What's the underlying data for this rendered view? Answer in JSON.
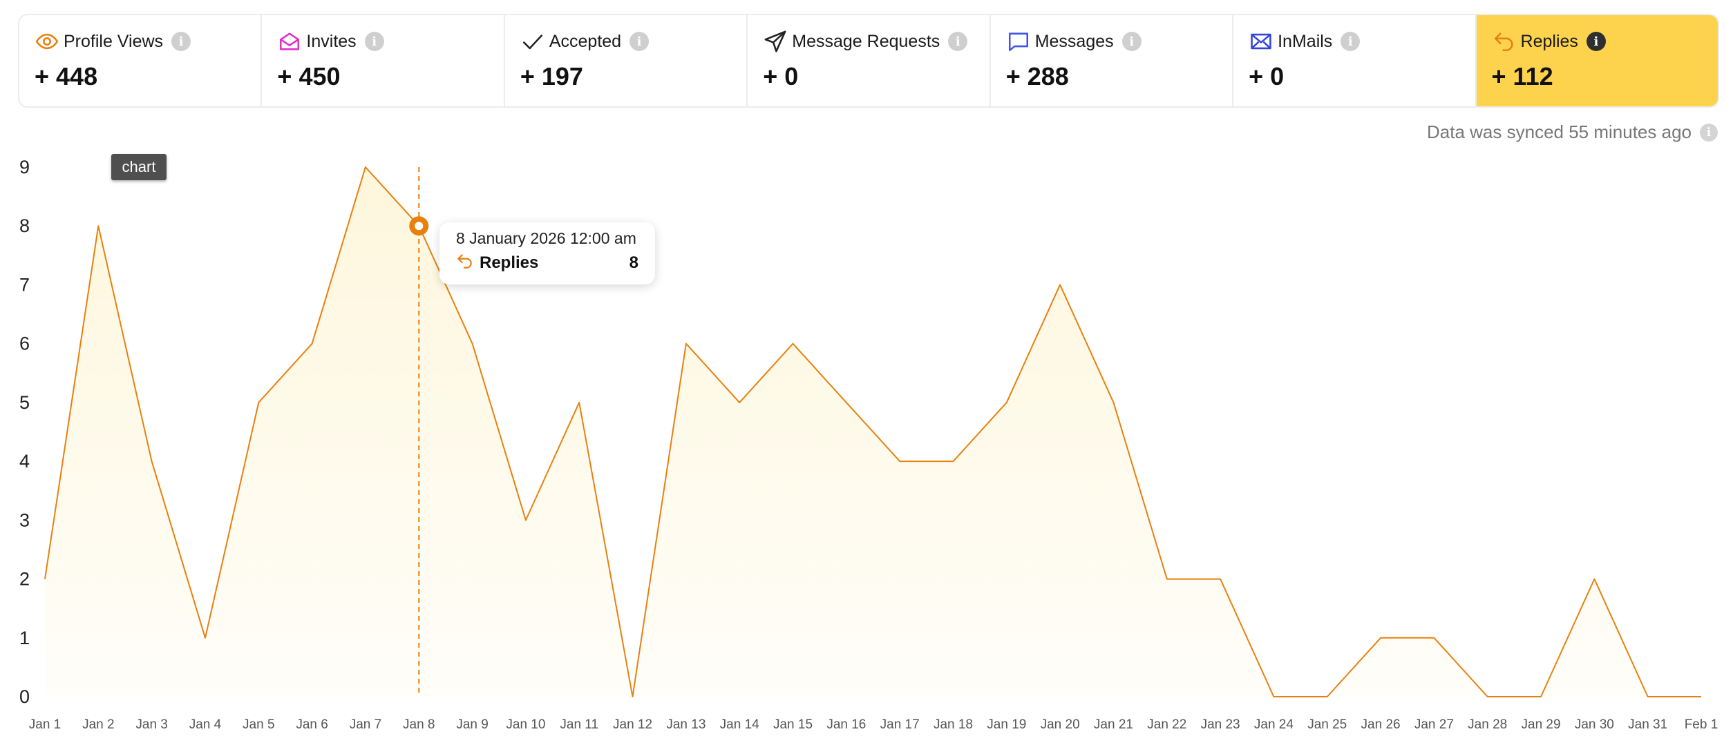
{
  "stats": [
    {
      "label": "Profile Views",
      "value": "+ 448",
      "icon": "eye-icon"
    },
    {
      "label": "Invites",
      "value": "+ 450",
      "icon": "envelope-open-icon"
    },
    {
      "label": "Accepted",
      "value": "+ 197",
      "icon": "check-icon"
    },
    {
      "label": "Message Requests",
      "value": "+ 0",
      "icon": "paper-plane-icon"
    },
    {
      "label": "Messages",
      "value": "+ 288",
      "icon": "chat-bubble-icon"
    },
    {
      "label": "InMails",
      "value": "+ 0",
      "icon": "mail-icon"
    },
    {
      "label": "Replies",
      "value": "+ 112",
      "icon": "reply-icon",
      "active": true
    }
  ],
  "sync_text": "Data was synced 55 minutes ago",
  "chip_label": "chart",
  "tooltip": {
    "date": "8 January 2026 12:00 am",
    "series": "Replies",
    "value": "8"
  },
  "colors": {
    "accent": "#e8800e",
    "active_bg": "#fdd34e",
    "area_fill": "#fef5d6",
    "info_grey": "#cfcfcf",
    "invites_icon": "#e12fc9",
    "messages_icon": "#4055e8",
    "inmails_icon": "#3443d6"
  },
  "chart_data": {
    "type": "area",
    "x": [
      "Jan 1",
      "Jan 2",
      "Jan 3",
      "Jan 4",
      "Jan 5",
      "Jan 6",
      "Jan 7",
      "Jan 8",
      "Jan 9",
      "Jan 10",
      "Jan 11",
      "Jan 12",
      "Jan 13",
      "Jan 14",
      "Jan 15",
      "Jan 16",
      "Jan 17",
      "Jan 18",
      "Jan 19",
      "Jan 20",
      "Jan 21",
      "Jan 22",
      "Jan 23",
      "Jan 24",
      "Jan 25",
      "Jan 26",
      "Jan 27",
      "Jan 28",
      "Jan 29",
      "Jan 30",
      "Jan 31",
      "Feb 1"
    ],
    "series": [
      {
        "name": "Replies",
        "values": [
          2,
          8,
          4,
          1,
          5,
          6,
          9,
          8,
          6,
          3,
          5,
          0,
          6,
          5,
          6,
          5,
          4,
          4,
          5,
          7,
          5,
          2,
          2,
          0,
          0,
          1,
          1,
          0,
          0,
          2,
          0,
          0
        ]
      }
    ],
    "yticks": [
      "0",
      "1",
      "2",
      "3",
      "4",
      "5",
      "6",
      "7",
      "8",
      "9"
    ],
    "ylim": [
      0,
      9
    ],
    "highlight_index": 7,
    "grid": false
  }
}
